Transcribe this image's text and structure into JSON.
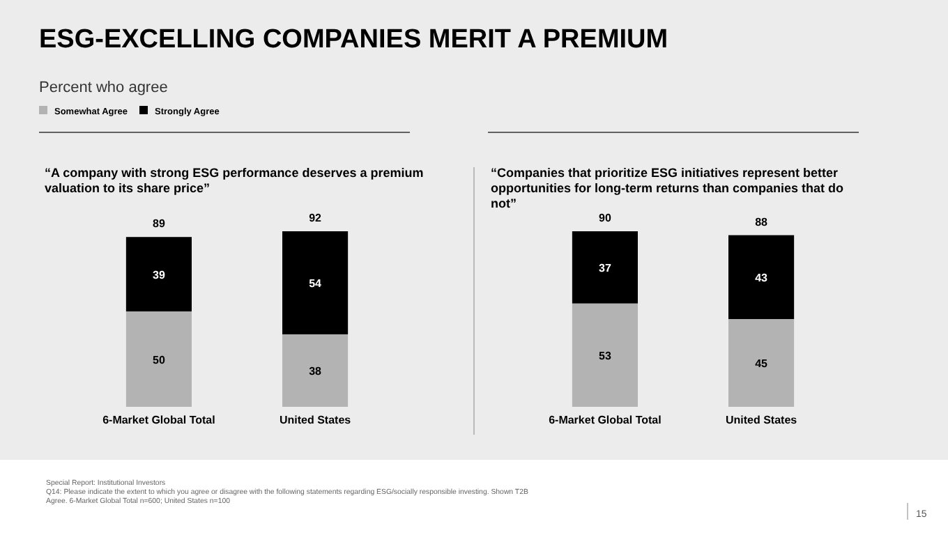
{
  "chart_data": [
    {
      "type": "bar",
      "stacked": true,
      "title": "“A company with strong ESG performance deserves a premium valuation to its share price”",
      "categories": [
        "6-Market Global Total",
        "United States"
      ],
      "series": [
        {
          "name": "Somewhat Agree",
          "color": "#b3b3b3",
          "values": [
            50,
            38
          ]
        },
        {
          "name": "Strongly Agree",
          "color": "#000000",
          "values": [
            39,
            54
          ]
        }
      ],
      "data_labels": true,
      "totals": [
        "89",
        "92"
      ],
      "legend": "top left",
      "annotations": [
        "ESG-EXCELLING COMPANIES MERIT A PREMIUM",
        "Percent who agree",
        "Special Report: Institutional Investors",
        "Q14: Please indicate the extent to which you agree or disagree with the following statements regarding ESG/socially responsible investing. Shown T2B Agree. 6-Market Global Total n=600; United States n=100",
        "15"
      ]
    },
    {
      "type": "bar",
      "stacked": true,
      "title": "“Companies that prioritize ESG initiatives represent better opportunities for long-term returns than companies that do not”",
      "categories": [
        "6-Market Global Total",
        "United States"
      ],
      "series": [
        {
          "color": "#b3b3b3",
          "values": [
            53,
            45
          ]
        },
        {
          "color": "#000000",
          "values": [
            37,
            43
          ]
        }
      ],
      "data_labels": true,
      "totals": [
        "90",
        "88"
      ]
    }
  ]
}
